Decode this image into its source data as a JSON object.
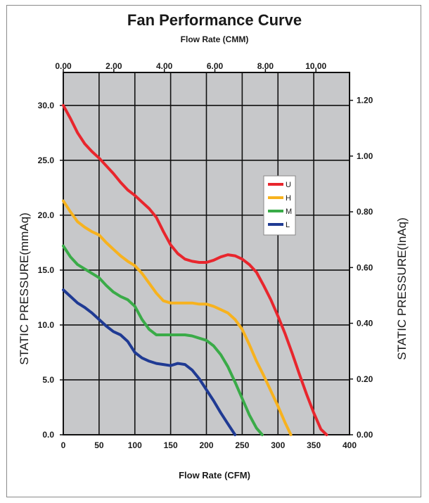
{
  "chart_data": {
    "type": "line",
    "title": "Fan Performance Curve",
    "top_axis": {
      "label": "Flow Rate (CMM)",
      "range": [
        0,
        11.33
      ],
      "ticks": [
        0,
        2,
        4,
        6,
        8,
        10
      ],
      "tick_labels": [
        "0.00",
        "2.00",
        "4.00",
        "6.00",
        "8.00",
        "10.00"
      ]
    },
    "x_axis": {
      "label": "Flow Rate (CFM)",
      "range": [
        0,
        400
      ],
      "ticks": [
        0,
        50,
        100,
        150,
        200,
        250,
        300,
        350,
        400
      ],
      "tick_labels": [
        "0",
        "50",
        "100",
        "150",
        "200",
        "250",
        "300",
        "350",
        "400"
      ]
    },
    "y_left": {
      "label": "STATIC PRESSURE(mmAq)",
      "range": [
        0,
        33
      ],
      "ticks": [
        0,
        5,
        10,
        15,
        20,
        25,
        30
      ],
      "tick_labels": [
        "0.0",
        "5.0",
        "10.0",
        "15.0",
        "20.0",
        "25.0",
        "30.0"
      ]
    },
    "y_right": {
      "label": "STATIC PRESSURE(InAq)",
      "range": [
        0,
        1.3
      ],
      "ticks": [
        0,
        0.2,
        0.4,
        0.6,
        0.8,
        1.0,
        1.2
      ],
      "tick_labels": [
        "0.00",
        "0.20",
        "0.40",
        "0.60",
        "0.80",
        "1.00",
        "1.20"
      ]
    },
    "grid": true,
    "legend_position": "upper-right",
    "series": [
      {
        "name": "U",
        "color": "#e8262d",
        "x": [
          0,
          10,
          20,
          30,
          40,
          50,
          60,
          70,
          80,
          90,
          100,
          110,
          120,
          130,
          140,
          150,
          160,
          170,
          180,
          190,
          200,
          210,
          220,
          230,
          240,
          250,
          260,
          270,
          280,
          290,
          300,
          310,
          320,
          330,
          340,
          350,
          360,
          368
        ],
        "y": [
          30.0,
          28.8,
          27.5,
          26.5,
          25.8,
          25.2,
          24.5,
          23.8,
          23.0,
          22.3,
          21.8,
          21.2,
          20.6,
          19.8,
          18.5,
          17.3,
          16.5,
          16.0,
          15.8,
          15.7,
          15.7,
          15.9,
          16.2,
          16.4,
          16.3,
          16.0,
          15.5,
          14.8,
          13.6,
          12.3,
          10.8,
          9.2,
          7.4,
          5.5,
          3.7,
          2.0,
          0.5,
          0
        ]
      },
      {
        "name": "H",
        "color": "#f7b21e",
        "x": [
          0,
          10,
          20,
          30,
          40,
          50,
          60,
          70,
          80,
          90,
          100,
          110,
          120,
          130,
          140,
          150,
          160,
          170,
          180,
          190,
          200,
          210,
          220,
          230,
          240,
          250,
          260,
          270,
          280,
          290,
          300,
          310,
          318
        ],
        "y": [
          21.3,
          20.3,
          19.4,
          18.9,
          18.5,
          18.2,
          17.5,
          16.9,
          16.3,
          15.8,
          15.4,
          14.7,
          13.8,
          12.9,
          12.2,
          12.0,
          12.0,
          12.0,
          12.0,
          11.9,
          11.9,
          11.7,
          11.4,
          11.1,
          10.5,
          9.6,
          8.2,
          6.7,
          5.4,
          4.0,
          2.6,
          1.1,
          0
        ]
      },
      {
        "name": "M",
        "color": "#3aab48",
        "x": [
          0,
          10,
          20,
          30,
          40,
          50,
          60,
          70,
          80,
          90,
          100,
          110,
          120,
          130,
          140,
          150,
          160,
          170,
          180,
          190,
          200,
          210,
          220,
          230,
          240,
          250,
          260,
          270,
          278
        ],
        "y": [
          17.2,
          16.2,
          15.5,
          15.1,
          14.7,
          14.3,
          13.6,
          13.0,
          12.6,
          12.3,
          11.7,
          10.5,
          9.6,
          9.1,
          9.1,
          9.1,
          9.1,
          9.1,
          9.0,
          8.8,
          8.6,
          8.1,
          7.3,
          6.2,
          4.8,
          3.3,
          1.8,
          0.6,
          0
        ]
      },
      {
        "name": "L",
        "color": "#1f3a93",
        "x": [
          0,
          10,
          20,
          30,
          40,
          50,
          60,
          70,
          80,
          90,
          100,
          110,
          120,
          130,
          140,
          150,
          160,
          170,
          180,
          190,
          200,
          210,
          220,
          230,
          240
        ],
        "y": [
          13.2,
          12.6,
          12.0,
          11.6,
          11.1,
          10.5,
          9.9,
          9.4,
          9.1,
          8.5,
          7.5,
          7.0,
          6.7,
          6.5,
          6.4,
          6.3,
          6.5,
          6.4,
          5.9,
          5.1,
          4.1,
          3.1,
          2.0,
          1.0,
          0
        ]
      }
    ]
  }
}
